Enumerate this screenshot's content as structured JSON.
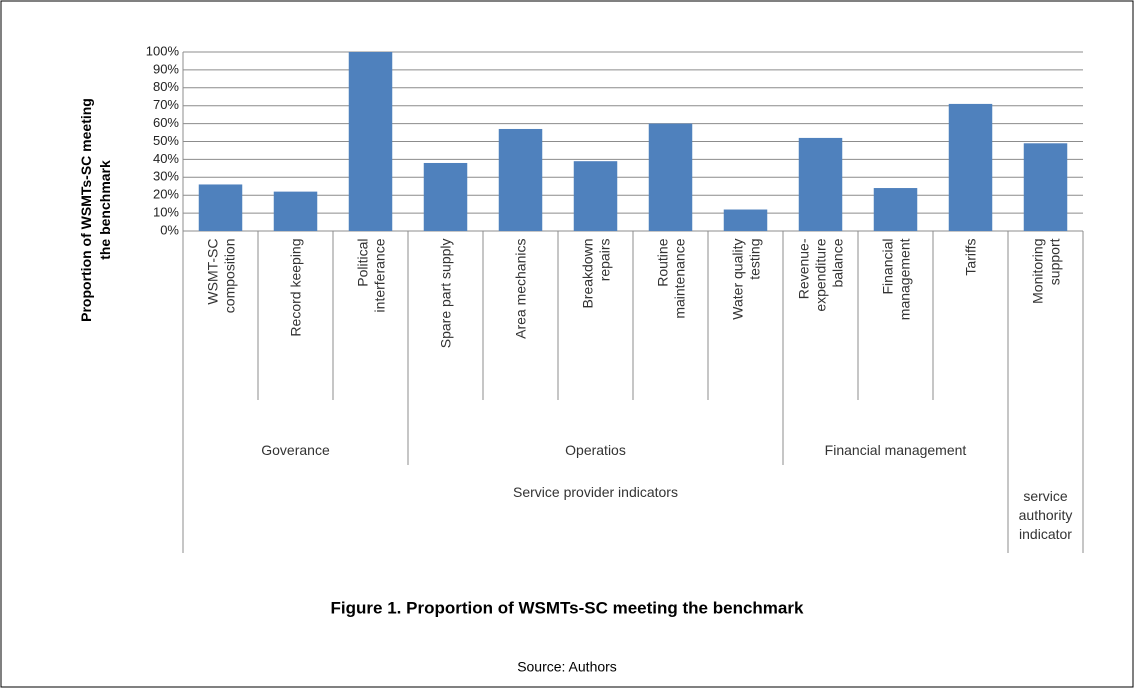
{
  "chart_data": {
    "type": "bar",
    "title": "Figure 1. Proportion of WSMTs-SC meeting the benchmark",
    "source": "Source: Authors",
    "y_label": "Proportion of WSMTs-SC meeting the benchmark",
    "categories": [
      "WSMT-SC composition",
      "Record keeping",
      "Political interferance",
      "Spare part supply",
      "Area mechanics",
      "Breakdown repairs",
      "Routine maintenance",
      "Water quality testing",
      "Revenue-expenditure balance",
      "Financial management",
      "Tariffs",
      "Monitoring support"
    ],
    "values": [
      26,
      22,
      100,
      38,
      57,
      39,
      60,
      12,
      52,
      24,
      71,
      49
    ],
    "color": "#4f81bd",
    "groups": [
      {
        "label": "Goverance",
        "span": 3
      },
      {
        "label": "Operatios",
        "span": 5
      },
      {
        "label": "Financial management",
        "span": 3
      },
      {
        "label": null,
        "span": 1
      }
    ],
    "supergroups": [
      {
        "label": "Service provider indicators",
        "span": 11
      },
      {
        "label": "service authority indicator",
        "span": 1
      }
    ],
    "ylim": [
      0,
      100
    ],
    "yticks": [
      {
        "value": 0,
        "label": "0%"
      },
      {
        "value": 10,
        "label": "10%"
      },
      {
        "value": 20,
        "label": "20%"
      },
      {
        "value": 30,
        "label": "30%"
      },
      {
        "value": 40,
        "label": "40%"
      },
      {
        "value": 50,
        "label": "50%"
      },
      {
        "value": 60,
        "label": "60%"
      },
      {
        "value": 70,
        "label": "70%"
      },
      {
        "value": 80,
        "label": "80%"
      },
      {
        "value": 90,
        "label": "90%"
      },
      {
        "value": 100,
        "label": "100%"
      }
    ],
    "grid": true
  }
}
